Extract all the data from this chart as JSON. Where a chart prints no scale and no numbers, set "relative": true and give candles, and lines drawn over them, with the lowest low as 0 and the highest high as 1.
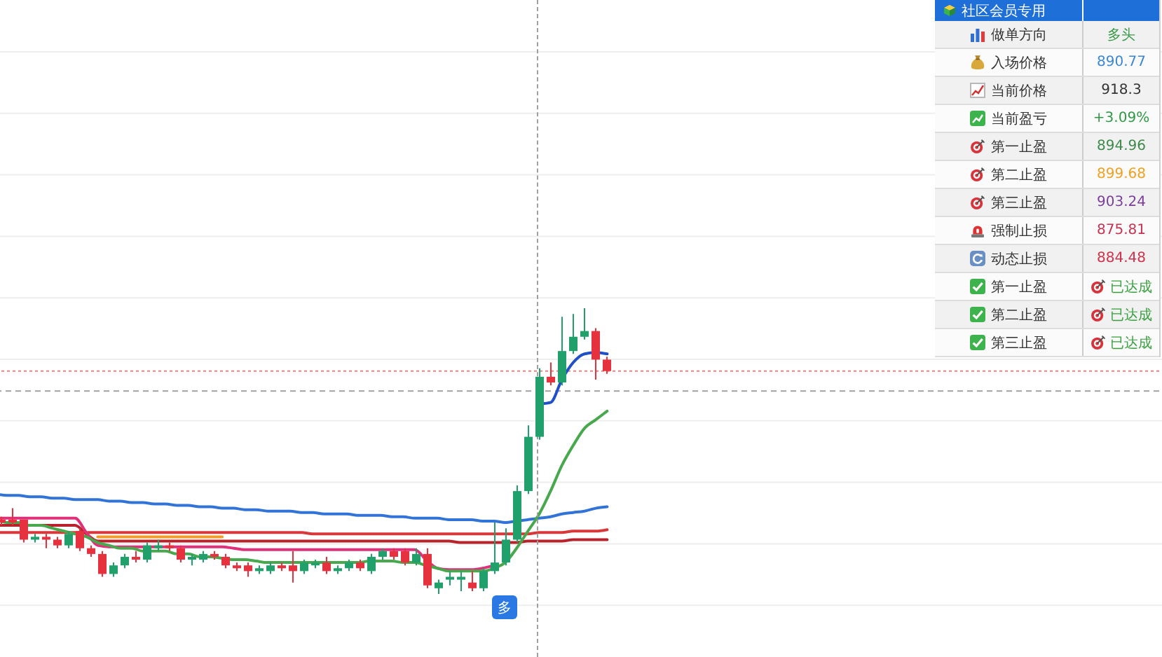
{
  "chart_data": [
    {
      "type": "candlestick",
      "relative": true,
      "tick_labels": false,
      "grid": "y",
      "categories": [
        null,
        null,
        null,
        null,
        null,
        null,
        null,
        null,
        null,
        null,
        null,
        null,
        null,
        null,
        null,
        null,
        null,
        null,
        null,
        null,
        null,
        null,
        null,
        null,
        null,
        null,
        null,
        null,
        null,
        null,
        null,
        null,
        null,
        null,
        null,
        null,
        null,
        null,
        null,
        null,
        null,
        null,
        null,
        null,
        null,
        null,
        null,
        null,
        null,
        null,
        null,
        null,
        null,
        null,
        null,
        null,
        null,
        null,
        null,
        null,
        null,
        null,
        null,
        null,
        null,
        null,
        null,
        null,
        null,
        null,
        null,
        null,
        null,
        null,
        null,
        null,
        null,
        null,
        null,
        null,
        null,
        null,
        null,
        null,
        null,
        null,
        null,
        null,
        null,
        null,
        null,
        null,
        null,
        null,
        null,
        null,
        null,
        null,
        null,
        null,
        null,
        null,
        null,
        null
      ],
      "ohlc": [
        [
          0.26,
          0.27,
          0.24,
          0.25
        ],
        [
          0.26,
          0.3,
          0.24,
          0.25
        ],
        [
          0.26,
          0.26,
          0.18,
          0.19
        ],
        [
          0.19,
          0.21,
          0.18,
          0.2
        ],
        [
          0.2,
          0.21,
          0.16,
          0.19
        ],
        [
          0.19,
          0.2,
          0.16,
          0.17
        ],
        [
          0.17,
          0.22,
          0.16,
          0.21
        ],
        [
          0.22,
          0.23,
          0.15,
          0.16
        ],
        [
          0.16,
          0.17,
          0.13,
          0.14
        ],
        [
          0.14,
          0.15,
          0.06,
          0.07
        ],
        [
          0.07,
          0.11,
          0.06,
          0.1
        ],
        [
          0.1,
          0.14,
          0.09,
          0.13
        ],
        [
          0.13,
          0.15,
          0.11,
          0.12
        ],
        [
          0.12,
          0.18,
          0.11,
          0.17
        ],
        [
          0.16,
          0.19,
          0.15,
          0.17
        ],
        [
          0.17,
          0.18,
          0.15,
          0.16
        ],
        [
          0.16,
          0.17,
          0.11,
          0.12
        ],
        [
          0.12,
          0.14,
          0.1,
          0.13
        ],
        [
          0.12,
          0.15,
          0.11,
          0.14
        ],
        [
          0.14,
          0.15,
          0.12,
          0.13
        ],
        [
          0.13,
          0.14,
          0.09,
          0.1
        ],
        [
          0.1,
          0.11,
          0.08,
          0.09
        ],
        [
          0.1,
          0.11,
          0.06,
          0.08
        ],
        [
          0.08,
          0.1,
          0.07,
          0.09
        ],
        [
          0.08,
          0.11,
          0.07,
          0.1
        ],
        [
          0.1,
          0.11,
          0.08,
          0.09
        ],
        [
          0.1,
          0.15,
          0.04,
          0.08
        ],
        [
          0.08,
          0.12,
          0.07,
          0.11
        ],
        [
          0.1,
          0.12,
          0.09,
          0.11
        ],
        [
          0.11,
          0.13,
          0.07,
          0.08
        ],
        [
          0.08,
          0.1,
          0.07,
          0.09
        ],
        [
          0.09,
          0.12,
          0.08,
          0.11
        ],
        [
          0.11,
          0.12,
          0.08,
          0.09
        ],
        [
          0.08,
          0.14,
          0.07,
          0.13
        ],
        [
          0.13,
          0.16,
          0.12,
          0.15
        ],
        [
          0.15,
          0.16,
          0.12,
          0.13
        ],
        [
          0.15,
          0.16,
          0.1,
          0.11
        ],
        [
          0.11,
          0.16,
          0.1,
          0.14
        ],
        [
          0.14,
          0.16,
          0.02,
          0.03
        ],
        [
          0.02,
          0.05,
          0,
          0.04
        ],
        [
          0.05,
          0.08,
          0.03,
          0.06
        ],
        [
          0.05,
          0.08,
          0.01,
          0.06
        ],
        [
          0.04,
          0.08,
          0.01,
          0.02
        ],
        [
          0.02,
          0.09,
          0.01,
          0.08
        ],
        [
          0.08,
          0.25,
          0.07,
          0.11
        ],
        [
          0.11,
          0.23,
          0.1,
          0.19
        ],
        [
          0.19,
          0.38,
          0.18,
          0.36
        ],
        [
          0.36,
          0.59,
          0.35,
          0.55
        ],
        [
          0.55,
          0.79,
          0.54,
          0.76
        ],
        [
          0.76,
          0.81,
          0.73,
          0.74
        ],
        [
          0.74,
          0.97,
          0.73,
          0.85
        ],
        [
          0.85,
          0.98,
          0.84,
          0.9
        ],
        [
          0.9,
          1,
          0.89,
          0.92
        ],
        [
          0.92,
          0.93,
          0.75,
          0.82
        ],
        [
          0.82,
          0.83,
          0.77,
          0.78
        ],
        null,
        null,
        null,
        null,
        null,
        null,
        null,
        null,
        null,
        null,
        null,
        null,
        null,
        null,
        null,
        null,
        null,
        null,
        null,
        null,
        null,
        null,
        null,
        null,
        null,
        null,
        null,
        null,
        null,
        null,
        null,
        null,
        null,
        null,
        null,
        null,
        null,
        null,
        null,
        null,
        null,
        null,
        null,
        null,
        null,
        null,
        null,
        null,
        null
      ],
      "colors": [
        "#e5323e",
        "#e5323e",
        "#e5323e",
        "#22a06b",
        "#e5323e",
        "#e5323e",
        "#22a06b",
        "#e5323e",
        "#e5323e",
        "#e5323e",
        "#22a06b",
        "#22a06b",
        "#e5323e",
        "#22a06b",
        "#22a06b",
        "#e5323e",
        "#e5323e",
        "#22a06b",
        "#22a06b",
        "#e5323e",
        "#e5323e",
        "#e5323e",
        "#e5323e",
        "#22a06b",
        "#22a06b",
        "#e5323e",
        "#e5323e",
        "#22a06b",
        "#22a06b",
        "#e5323e",
        "#22a06b",
        "#22a06b",
        "#e5323e",
        "#22a06b",
        "#22a06b",
        "#e5323e",
        "#e5323e",
        "#22a06b",
        "#e5323e",
        "#22a06b",
        "#22a06b",
        "#22a06b",
        "#e5323e",
        "#22a06b",
        "#22a06b",
        "#22a06b",
        "#22a06b",
        "#22a06b",
        "#22a06b",
        "#e5323e",
        "#22a06b",
        "#22a06b",
        "#22a06b",
        "#e5323e",
        "#e5323e",
        null,
        null,
        null,
        null,
        null,
        null,
        null,
        null,
        null,
        null,
        null,
        null,
        null,
        null,
        null,
        null,
        null,
        null,
        null,
        null,
        null,
        null,
        null,
        null,
        null,
        null,
        null,
        null,
        null,
        null,
        null,
        null,
        null,
        null,
        null,
        null,
        null,
        null,
        null,
        null,
        null,
        null,
        null,
        null,
        null,
        null,
        null,
        null,
        null
      ],
      "series": [
        {
          "type": "line",
          "color": "#3173d6",
          "values": [
            0.35,
            0.345,
            0.345,
            0.34,
            0.34,
            0.335,
            0.335,
            0.33,
            0.33,
            0.33,
            0.325,
            0.325,
            0.32,
            0.32,
            0.315,
            0.315,
            0.31,
            0.31,
            0.305,
            0.305,
            0.3,
            0.3,
            0.295,
            0.295,
            0.29,
            0.29,
            0.29,
            0.285,
            0.285,
            0.28,
            0.28,
            0.28,
            0.275,
            0.275,
            0.275,
            0.27,
            0.27,
            0.265,
            0.265,
            0.265,
            0.26,
            0.26,
            0.26,
            0.255,
            0.255,
            0.25,
            0.255,
            0.26,
            0.265,
            0.27,
            0.28,
            0.285,
            0.29,
            0.3,
            0.305,
            null,
            null,
            null,
            null,
            null,
            null,
            null,
            null,
            null,
            null,
            null,
            null,
            null,
            null,
            null,
            null,
            null,
            null,
            null,
            null,
            null,
            null,
            null,
            null,
            null,
            null,
            null,
            null,
            null,
            null,
            null,
            null,
            null,
            null,
            null,
            null,
            null,
            null,
            null,
            null,
            null,
            null,
            null,
            null,
            null,
            null,
            null,
            null,
            null
          ]
        },
        {
          "type": "line",
          "color": "#d9383a",
          "values": [
            0.215,
            0.215,
            0.215,
            0.215,
            0.215,
            0.215,
            0.215,
            0.215,
            0.215,
            0.215,
            0.215,
            0.215,
            0.215,
            0.215,
            0.215,
            0.215,
            0.215,
            0.215,
            0.215,
            0.215,
            0.215,
            0.215,
            0.215,
            0.215,
            0.215,
            0.215,
            0.215,
            0.215,
            0.21,
            0.21,
            0.21,
            0.21,
            0.21,
            0.21,
            0.21,
            0.21,
            0.21,
            0.21,
            0.21,
            0.21,
            0.21,
            0.21,
            0.21,
            0.21,
            0.21,
            0.21,
            0.21,
            0.21,
            0.215,
            0.215,
            0.215,
            0.22,
            0.22,
            0.22,
            0.225,
            null,
            null,
            null,
            null,
            null,
            null,
            null,
            null,
            null,
            null,
            null,
            null,
            null,
            null,
            null,
            null,
            null,
            null,
            null,
            null,
            null,
            null,
            null,
            null,
            null,
            null,
            null,
            null,
            null,
            null,
            null,
            null,
            null,
            null,
            null,
            null,
            null,
            null,
            null,
            null,
            null,
            null,
            null,
            null,
            null,
            null,
            null,
            null,
            null
          ]
        },
        {
          "type": "line",
          "color": "#b8232b",
          "values": [
            0.24,
            0.24,
            0.24,
            0.24,
            0.24,
            0.24,
            0.24,
            0.24,
            0.21,
            0.185,
            0.185,
            0.185,
            0.185,
            0.185,
            0.185,
            0.185,
            0.185,
            0.185,
            0.185,
            0.185,
            0.185,
            0.185,
            0.185,
            0.185,
            0.185,
            0.185,
            0.185,
            0.185,
            0.185,
            0.185,
            0.185,
            0.185,
            0.185,
            0.185,
            0.185,
            0.185,
            0.185,
            0.185,
            0.185,
            0.185,
            0.185,
            0.18,
            0.18,
            0.18,
            0.18,
            0.18,
            0.18,
            0.185,
            0.185,
            0.185,
            0.185,
            0.19,
            0.19,
            0.19,
            0.19,
            null,
            null,
            null,
            null,
            null,
            null,
            null,
            null,
            null,
            null,
            null,
            null,
            null,
            null,
            null,
            null,
            null,
            null,
            null,
            null,
            null,
            null,
            null,
            null,
            null,
            null,
            null,
            null,
            null,
            null,
            null,
            null,
            null,
            null,
            null,
            null,
            null,
            null,
            null,
            null,
            null,
            null,
            null,
            null,
            null,
            null,
            null,
            null,
            null
          ]
        },
        {
          "type": "line",
          "color": "#f39c26",
          "values": [
            null,
            null,
            null,
            null,
            null,
            null,
            null,
            null,
            null,
            0.2,
            0.2,
            0.2,
            0.2,
            0.2,
            0.2,
            0.2,
            0.2,
            0.2,
            0.2,
            0.2,
            0.2,
            null,
            null,
            null,
            null,
            null,
            null,
            null,
            null,
            null,
            null,
            null,
            null,
            null,
            null,
            null,
            null,
            null,
            null,
            null,
            null,
            null,
            null,
            null,
            null,
            null,
            null,
            null,
            null,
            null,
            null,
            null,
            null,
            null,
            null,
            null,
            null,
            null,
            null,
            null,
            null,
            null,
            null,
            null,
            null,
            null,
            null,
            null,
            null,
            null,
            null,
            null,
            null,
            null,
            null,
            null,
            null,
            null,
            null,
            null,
            null,
            null,
            null,
            null,
            null,
            null,
            null,
            null,
            null,
            null,
            null,
            null,
            null,
            null,
            null,
            null,
            null,
            null,
            null,
            null,
            null,
            null,
            null,
            null
          ]
        },
        {
          "type": "line",
          "color": "#e0307a",
          "values": [
            0.265,
            0.265,
            0.265,
            0.265,
            0.265,
            0.265,
            0.265,
            0.265,
            0.215,
            0.17,
            0.165,
            0.165,
            0.165,
            0.165,
            0.165,
            0.165,
            0.165,
            0.165,
            0.165,
            0.165,
            0.165,
            0.16,
            0.155,
            0.155,
            0.155,
            0.155,
            0.155,
            0.155,
            0.155,
            0.155,
            0.155,
            0.155,
            0.155,
            0.155,
            0.155,
            0.155,
            0.155,
            0.155,
            0.12,
            0.09,
            0.085,
            0.085,
            0.085,
            0.09,
            0.1,
            null,
            null,
            null,
            null,
            null,
            null,
            null,
            null,
            null,
            null,
            null,
            null,
            null,
            null,
            null,
            null,
            null,
            null,
            null,
            null,
            null,
            null,
            null,
            null,
            null,
            null,
            null,
            null,
            null,
            null,
            null,
            null,
            null,
            null,
            null,
            null,
            null,
            null,
            null,
            null,
            null,
            null,
            null,
            null,
            null,
            null,
            null,
            null,
            null,
            null,
            null,
            null,
            null,
            null,
            null,
            null,
            null,
            null,
            null
          ]
        },
        {
          "type": "line",
          "color": "#48a84e",
          "values": [
            0.26,
            0.25,
            0.25,
            0.24,
            0.24,
            0.23,
            0.22,
            0.21,
            0.2,
            0.18,
            0.17,
            0.16,
            0.16,
            0.15,
            0.15,
            0.15,
            0.14,
            0.14,
            0.13,
            0.13,
            0.125,
            0.12,
            0.12,
            0.115,
            0.11,
            0.11,
            0.11,
            0.11,
            0.11,
            0.11,
            0.11,
            0.11,
            0.11,
            0.115,
            0.115,
            0.115,
            0.11,
            0.11,
            0.1,
            0.09,
            0.08,
            0.08,
            0.08,
            0.08,
            0.09,
            0.11,
            0.16,
            0.22,
            0.28,
            0.36,
            0.45,
            0.52,
            0.58,
            0.61,
            0.64,
            null,
            null,
            null,
            null,
            null,
            null,
            null,
            null,
            null,
            null,
            null,
            null,
            null,
            null,
            null,
            null,
            null,
            null,
            null,
            null,
            null,
            null,
            null,
            null,
            null,
            null,
            null,
            null,
            null,
            null,
            null,
            null,
            null,
            null,
            null,
            null,
            null,
            null,
            null,
            null,
            null,
            null,
            null,
            null,
            null,
            null,
            null,
            null,
            null
          ]
        },
        {
          "type": "line",
          "color": "#1f4fc9",
          "values": [
            null,
            null,
            null,
            null,
            null,
            null,
            null,
            null,
            null,
            null,
            null,
            null,
            null,
            null,
            null,
            null,
            null,
            null,
            null,
            null,
            null,
            null,
            null,
            null,
            null,
            null,
            null,
            null,
            null,
            null,
            null,
            null,
            null,
            null,
            null,
            null,
            null,
            null,
            null,
            null,
            null,
            null,
            null,
            null,
            null,
            null,
            null,
            null,
            0.665,
            0.67,
            0.75,
            0.81,
            0.84,
            0.845,
            0.84,
            null,
            null,
            null,
            null,
            null,
            null,
            null,
            null,
            null,
            null,
            null,
            null,
            null,
            null,
            null,
            null,
            null,
            null,
            null,
            null,
            null,
            null,
            null,
            null,
            null,
            null,
            null,
            null,
            null,
            null,
            null,
            null,
            null,
            null,
            null,
            null,
            null,
            null,
            null,
            null,
            null,
            null,
            null,
            null,
            null,
            null,
            null,
            null,
            null
          ]
        }
      ],
      "ref_lines": [
        {
          "axis": "y",
          "value": 0.78,
          "color": "#ee8080",
          "line_style": "dotted"
        },
        {
          "axis": "y",
          "value": 0.71,
          "color": "#a0a0a0",
          "line_style": "dashed"
        }
      ],
      "annotations": [
        "多"
      ]
    },
    {
      "type": "other",
      "title": "社区会员专用",
      "categories": [
        "做单方向",
        "入场价格",
        "当前价格",
        "当前盈亏",
        "第一止盈",
        "第二止盈",
        "第三止盈",
        "强制止损",
        "动态止损",
        "第一止盈",
        "第二止盈",
        "第三止盈"
      ],
      "value_labels": [
        "多头",
        "890.77",
        "918.3",
        "+3.09%",
        "894.96",
        "899.68",
        "903.24",
        "875.81",
        "884.48",
        "已达成",
        "已达成",
        "已达成"
      ]
    }
  ]
}
